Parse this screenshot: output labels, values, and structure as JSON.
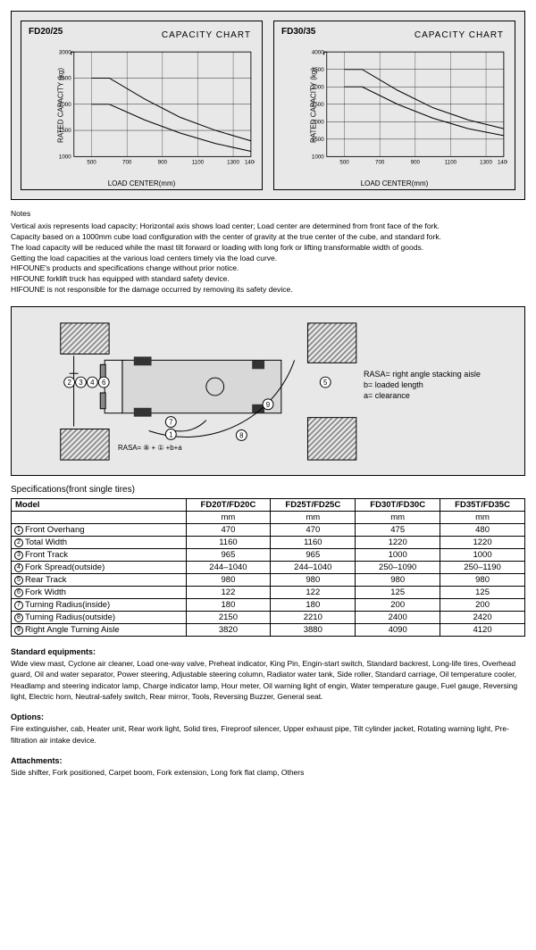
{
  "charts": [
    {
      "model_label": "FD20/25",
      "title": "CAPACITY CHART",
      "ylabel": "RATED CAPACITY  (kg)",
      "xlabel": "LOAD  CENTER(mm)",
      "ylim": [
        1000,
        3000
      ],
      "ytick_step": 500,
      "yticks": [
        1000,
        1500,
        2000,
        2500,
        3000
      ],
      "xticks": [
        500,
        700,
        900,
        1100,
        1300,
        1400
      ],
      "x_range": [
        400,
        1400
      ],
      "grid_line_count_h": 8,
      "series": [
        {
          "color": "#000",
          "width": 1,
          "points": [
            [
              500,
              2500
            ],
            [
              600,
              2500
            ],
            [
              800,
              2100
            ],
            [
              1000,
              1750
            ],
            [
              1200,
              1500
            ],
            [
              1400,
              1300
            ]
          ]
        },
        {
          "color": "#000",
          "width": 1,
          "points": [
            [
              500,
              2000
            ],
            [
              600,
              2000
            ],
            [
              800,
              1700
            ],
            [
              1000,
              1450
            ],
            [
              1200,
              1250
            ],
            [
              1400,
              1100
            ]
          ]
        }
      ],
      "bg": "#e8e8e8",
      "grid_color": "#000"
    },
    {
      "model_label": "FD30/35",
      "title": "CAPACITY CHART",
      "ylabel": "RATED CAPACITY  (kg)",
      "xlabel": "LOAD  CENTER(mm)",
      "ylim": [
        1000,
        4000
      ],
      "ytick_step": 500,
      "yticks": [
        1000,
        1500,
        2000,
        2500,
        3000,
        3500,
        4000
      ],
      "xticks": [
        500,
        700,
        900,
        1100,
        1300,
        1400
      ],
      "x_range": [
        400,
        1400
      ],
      "grid_line_count_h": 8,
      "series": [
        {
          "color": "#000",
          "width": 1,
          "points": [
            [
              500,
              3500
            ],
            [
              600,
              3500
            ],
            [
              800,
              2900
            ],
            [
              1000,
              2400
            ],
            [
              1200,
              2050
            ],
            [
              1400,
              1800
            ]
          ]
        },
        {
          "color": "#000",
          "width": 1,
          "points": [
            [
              500,
              3000
            ],
            [
              600,
              3000
            ],
            [
              800,
              2500
            ],
            [
              1000,
              2100
            ],
            [
              1200,
              1800
            ],
            [
              1400,
              1600
            ]
          ]
        }
      ],
      "bg": "#e8e8e8",
      "grid_color": "#000"
    }
  ],
  "notes": {
    "heading": "Notes",
    "lines": [
      "Vertical axis represents load capacity; Horizontal axis shows load center; Load center are determined from front face of the fork.",
      "Capacity based on a 1000mm cube load configuration with the center of gravity at the true center of the cube, and standard fork.",
      "The load capacity will be reduced while the mast tilt forward or loading with long fork or lifting transformable width of goods.",
      "Getting the load capacities at the various load centers timely via the load curve.",
      "HIFOUNE's products and specifications change without prior notice.",
      "HIFOUNE forklift truck has equipped with standard safety device.",
      "HIFOUNE is not responsible for the damage occurred by removing its safety device."
    ]
  },
  "diagram": {
    "legend": {
      "rasa": "RASA= right angle stacking aisle",
      "b": "b= loaded length",
      "a": "a= clearance"
    },
    "formula": "RASA= ⑧ + ① +b+a",
    "callouts": [
      "1",
      "2",
      "3",
      "4",
      "5",
      "6",
      "7",
      "8",
      "9"
    ],
    "hatch_color": "#808080"
  },
  "spec_heading": "Specifications(front single tires)",
  "table": {
    "header": [
      "Model",
      "FD20T/FD20C",
      "FD25T/FD25C",
      "FD30T/FD30C",
      "FD35T/FD35C"
    ],
    "unit_row": [
      "",
      "mm",
      "mm",
      "mm",
      "mm"
    ],
    "rows": [
      {
        "n": "1",
        "label": "Front Overhang",
        "v": [
          "470",
          "470",
          "475",
          "480"
        ]
      },
      {
        "n": "2",
        "label": "Total Width",
        "v": [
          "1160",
          "1160",
          "1220",
          "1220"
        ]
      },
      {
        "n": "3",
        "label": "Front Track",
        "v": [
          "965",
          "965",
          "1000",
          "1000"
        ]
      },
      {
        "n": "4",
        "label": "Fork Spread(outside)",
        "v": [
          "244–1040",
          "244–1040",
          "250–1090",
          "250–1190"
        ]
      },
      {
        "n": "5",
        "label": "Rear Track",
        "v": [
          "980",
          "980",
          "980",
          "980"
        ]
      },
      {
        "n": "6",
        "label": "Fork Width",
        "v": [
          "122",
          "122",
          "125",
          "125"
        ]
      },
      {
        "n": "7",
        "label": "Turning Radius(inside)",
        "v": [
          "180",
          "180",
          "200",
          "200"
        ]
      },
      {
        "n": "8",
        "label": "Turning Radius(outside)",
        "v": [
          "2150",
          "2210",
          "2400",
          "2420"
        ]
      },
      {
        "n": "9",
        "label": "Right Angle Turning Aisle",
        "v": [
          "3820",
          "3880",
          "4090",
          "4120"
        ]
      }
    ],
    "col_widths": [
      "34%",
      "16.5%",
      "16.5%",
      "16.5%",
      "16.5%"
    ]
  },
  "equip": {
    "heading": "Standard equipments:",
    "text": "Wide view mast, Cyclone air cleaner, Load one-way valve, Preheat indicator, King Pin, Engin-start switch, Standard backrest, Long-life tires, Overhead guard, Oil and water separator, Power steering, Adjustable steering column, Radiator water tank, Side roller, Standard carriage, Oil temperature cooler, Headlamp and steering indicator lamp, Charge indicator lamp, Hour meter, Oil warning light of engin, Water temperature gauge, Fuel gauge, Reversing light, Electric horn, Neutral-safely switch, Rear mirror, Tools, Reversing Buzzer, General seat."
  },
  "options": {
    "heading": "Options:",
    "text": "Fire extinguisher, cab, Heater unit, Rear work light, Solid tires, Fireproof silencer, Upper exhaust pipe, Tilt cylinder jacket, Rotating warning light, Pre-filtration air intake device."
  },
  "attach": {
    "heading": "Attachments:",
    "text": "Side shifter, Fork positioned, Carpet boom, Fork extension, Long fork flat clamp, Others"
  }
}
